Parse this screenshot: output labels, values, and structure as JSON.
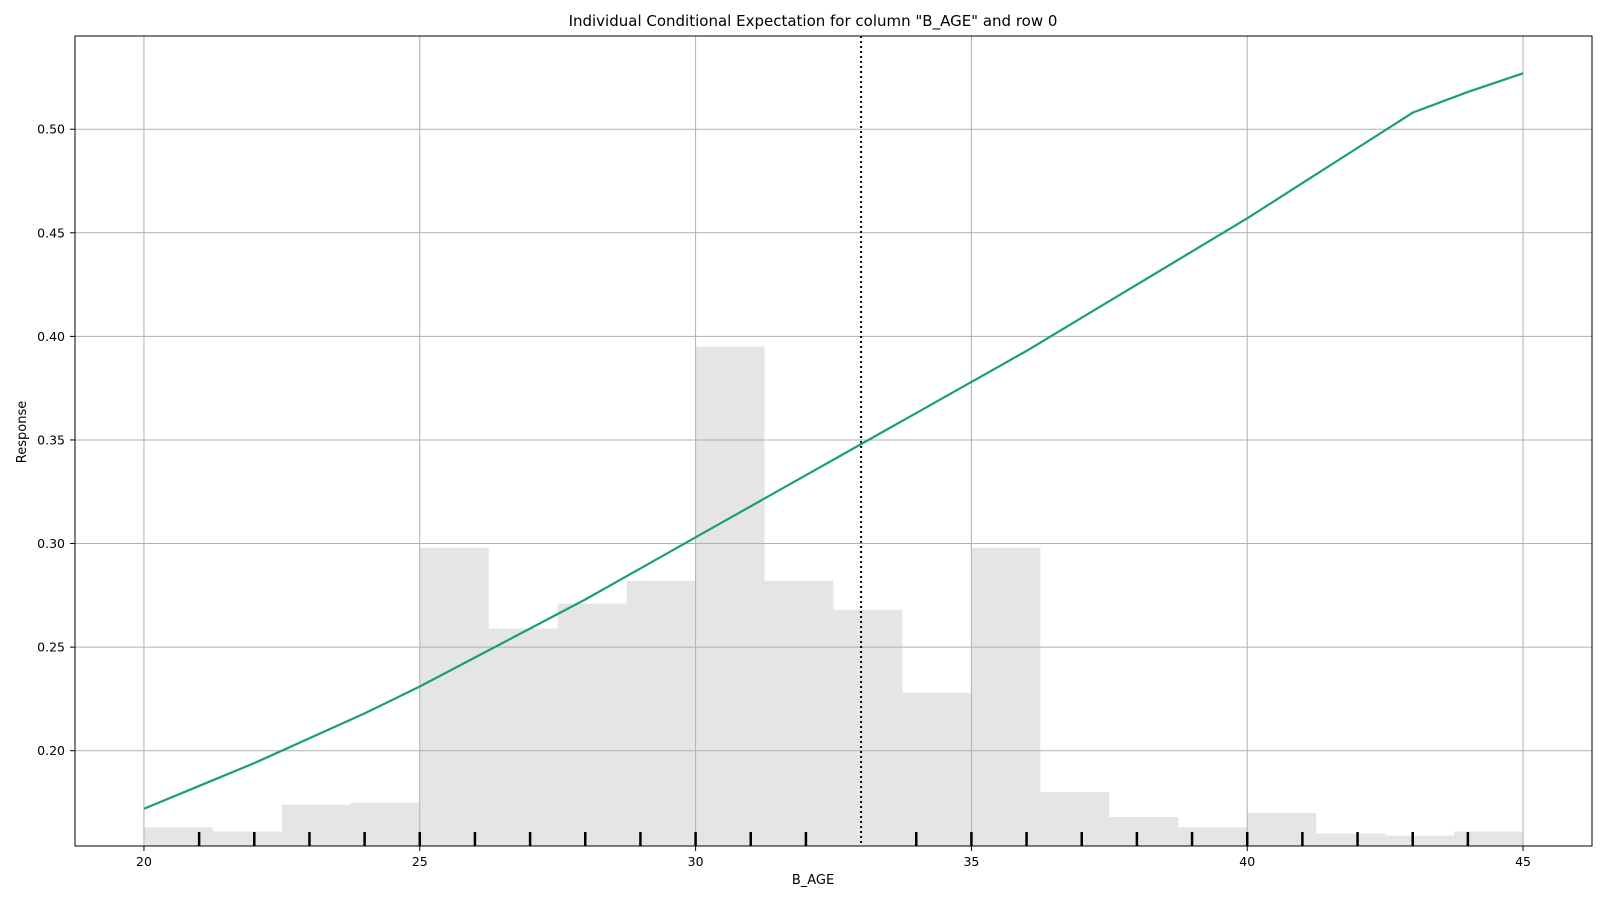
{
  "chart_data": {
    "type": "line",
    "title": "Individual Conditional Expectation for column \"B_AGE\" and row 0",
    "xlabel": "B_AGE",
    "ylabel": "Response",
    "xlim": [
      18.75,
      46.25
    ],
    "ylim": [
      0.154,
      0.545
    ],
    "x_ticks": [
      20,
      25,
      30,
      35,
      40,
      45
    ],
    "x_tick_labels": [
      "20",
      "25",
      "30",
      "35",
      "40",
      "45"
    ],
    "y_ticks": [
      0.2,
      0.25,
      0.3,
      0.35,
      0.4,
      0.45,
      0.5
    ],
    "y_tick_labels": [
      "0.20",
      "0.25",
      "0.30",
      "0.35",
      "0.40",
      "0.45",
      "0.50"
    ],
    "grid": true,
    "line_color": "#1b9e77",
    "series": [
      {
        "x": [
          20,
          21,
          22,
          23,
          24,
          25,
          26,
          27,
          28,
          29,
          30,
          31,
          32,
          33,
          34,
          35,
          36,
          37,
          38,
          39,
          40,
          41,
          42,
          43,
          44,
          45
        ],
        "values": [
          0.172,
          0.183,
          0.194,
          0.206,
          0.218,
          0.231,
          0.245,
          0.259,
          0.273,
          0.288,
          0.303,
          0.318,
          0.333,
          0.348,
          0.363,
          0.378,
          0.393,
          0.409,
          0.425,
          0.441,
          0.457,
          0.474,
          0.491,
          0.508,
          0.518,
          0.527
        ]
      }
    ],
    "reference_line_x": 33,
    "histogram": {
      "color": "#e5e5e5",
      "bin_edges": [
        20,
        21.25,
        22.5,
        23.75,
        25,
        26.25,
        27.5,
        28.75,
        30,
        31.25,
        32.5,
        33.75,
        35,
        36.25,
        37.5,
        38.75,
        40,
        41.25,
        42.5,
        43.75,
        45
      ],
      "tops": [
        0.163,
        0.161,
        0.174,
        0.175,
        0.298,
        0.259,
        0.271,
        0.282,
        0.395,
        0.282,
        0.268,
        0.228,
        0.298,
        0.18,
        0.168,
        0.163,
        0.17,
        0.16,
        0.159,
        0.161
      ]
    },
    "rug_x": [
      21,
      22,
      23,
      24,
      25,
      26,
      27,
      28,
      29,
      30,
      31,
      32,
      34,
      35,
      36,
      37,
      38,
      39,
      40,
      41,
      42,
      43,
      44
    ]
  }
}
